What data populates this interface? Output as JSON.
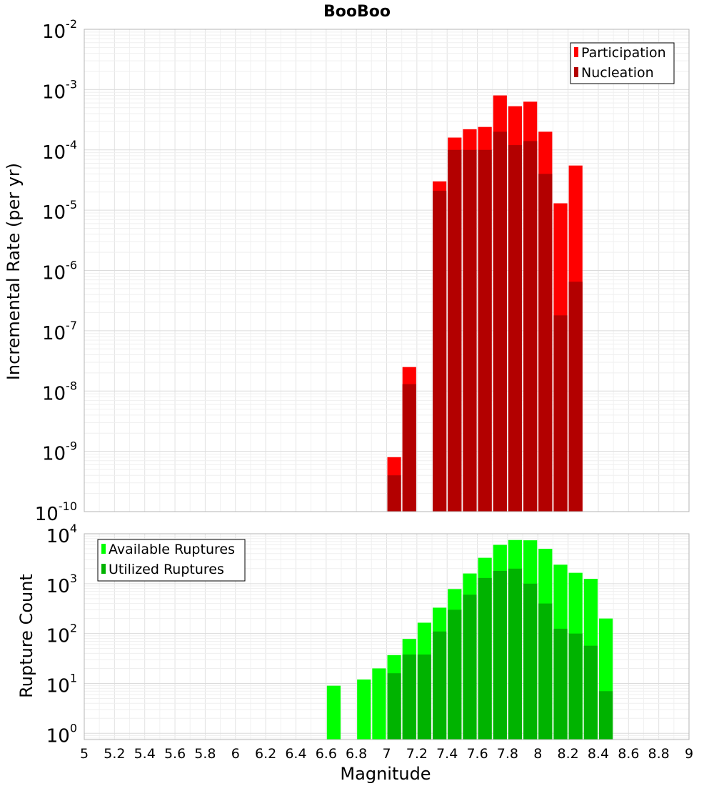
{
  "chart_data": [
    {
      "type": "bar",
      "title": "BooBoo",
      "ylabel": "Incremental Rate (per yr)",
      "yscale": "log",
      "ylim": [
        1e-10,
        0.01
      ],
      "y_tick_exponents": [
        "-10",
        "-9",
        "-8",
        "-7",
        "-6",
        "-5",
        "-4",
        "-3",
        "-2"
      ],
      "grid": true,
      "legend_position": "top-right",
      "x": [
        7.0,
        7.1,
        7.3,
        7.4,
        7.5,
        7.6,
        7.7,
        7.8,
        7.9,
        8.0,
        8.1,
        8.2
      ],
      "series": [
        {
          "name": "Participation",
          "color": "#ff0000",
          "values": [
            8e-10,
            2.5e-08,
            3e-05,
            0.00016,
            0.00022,
            0.00024,
            0.0008,
            0.00053,
            0.00063,
            0.0002,
            1.3e-05,
            5.5e-05
          ]
        },
        {
          "name": "Nucleation",
          "color": "#b30000",
          "values": [
            4e-10,
            1.3e-08,
            2.1e-05,
            0.0001,
            0.0001,
            0.0001,
            0.0002,
            0.00012,
            0.00014,
            4e-05,
            1.8e-07,
            6.5e-07
          ]
        }
      ]
    },
    {
      "type": "bar",
      "xlabel": "Magnitude",
      "ylabel": "Rupture Count",
      "yscale": "log",
      "ylim": [
        0.75,
        10000.0
      ],
      "y_tick_exponents": [
        "0",
        "1",
        "2",
        "3",
        "4"
      ],
      "xlim": [
        5,
        9
      ],
      "x_ticks": [
        "5",
        "5.2",
        "5.4",
        "5.6",
        "5.8",
        "6",
        "6.2",
        "6.4",
        "6.6",
        "6.8",
        "7",
        "7.2",
        "7.4",
        "7.6",
        "7.8",
        "8",
        "8.2",
        "8.4",
        "8.6",
        "8.8",
        "9"
      ],
      "grid": true,
      "legend_position": "top-left",
      "x": [
        6.6,
        6.8,
        6.9,
        7.0,
        7.1,
        7.2,
        7.3,
        7.4,
        7.5,
        7.6,
        7.7,
        7.8,
        7.9,
        8.0,
        8.1,
        8.2,
        8.3,
        8.4
      ],
      "series": [
        {
          "name": "Available Ruptures",
          "color": "#00ff00",
          "values": [
            9,
            12,
            20,
            37,
            78,
            165,
            330,
            780,
            1600,
            3300,
            6000,
            7500,
            7400,
            5000,
            2400,
            1650,
            1250,
            200
          ]
        },
        {
          "name": "Utilized Ruptures",
          "color": "#00b300",
          "values": [
            0,
            0,
            0,
            16,
            38,
            38,
            110,
            300,
            600,
            1300,
            1800,
            2000,
            1000,
            400,
            125,
            100,
            57,
            7
          ]
        }
      ]
    }
  ]
}
